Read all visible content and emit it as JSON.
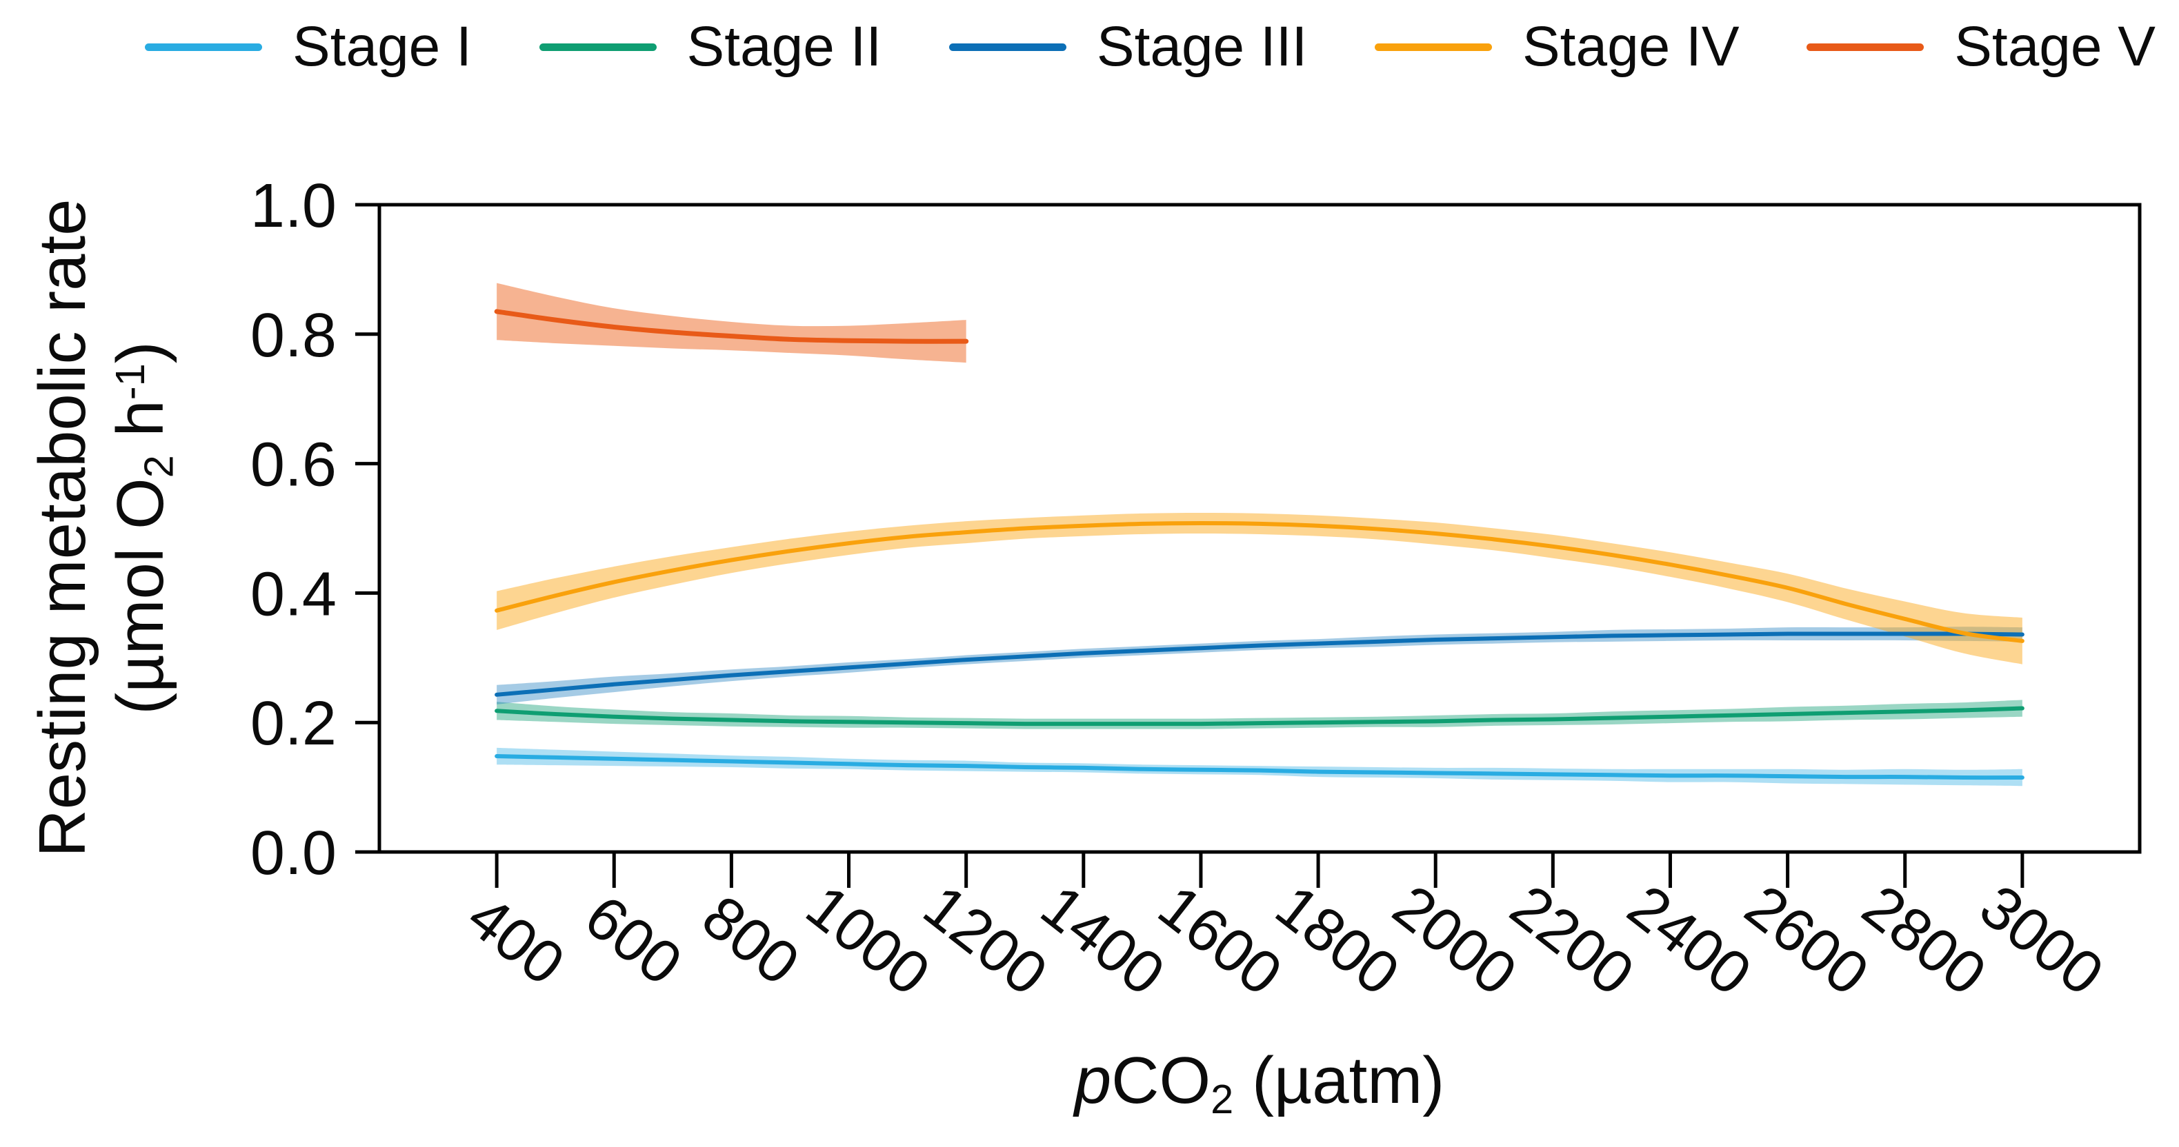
{
  "figure": {
    "ylabel_line1": "Resting metabolic rate",
    "ylabel_unit_pre": "(µmol O",
    "ylabel_unit_sub": "2",
    "ylabel_unit_mid": " h",
    "ylabel_unit_sup": "-1",
    "ylabel_unit_post": ")",
    "xlabel_italic": "p",
    "xlabel_main": "CO",
    "xlabel_sub": "2",
    "xlabel_post": " (µatm)"
  },
  "chart_data": {
    "type": "line",
    "title": "",
    "xlabel": "pCO2 (µatm)",
    "ylabel": "Resting metabolic rate (µmol O2 h-1)",
    "xlim": [
      200,
      3200
    ],
    "ylim": [
      0,
      1
    ],
    "grid": false,
    "legend_position": "top",
    "x_ticks": [
      400,
      600,
      800,
      1000,
      1200,
      1400,
      1600,
      1800,
      2000,
      2200,
      2400,
      2600,
      2800,
      3000
    ],
    "y_ticks": [
      0.0,
      0.2,
      0.4,
      0.6,
      0.8,
      1.0
    ],
    "y_tick_labels": [
      "0.0",
      "0.2",
      "0.4",
      "0.6",
      "0.8",
      "1.0"
    ],
    "axis_color": "#000000",
    "series": [
      {
        "name": "Stage I",
        "color": "#29ACE2",
        "band_color": "rgba(41,172,226,0.38)",
        "x_start": 400,
        "x_step": 100,
        "values": [
          0.148,
          0.146,
          0.144,
          0.142,
          0.14,
          0.138,
          0.136,
          0.134,
          0.133,
          0.131,
          0.13,
          0.128,
          0.127,
          0.126,
          0.124,
          0.123,
          0.122,
          0.121,
          0.12,
          0.119,
          0.118,
          0.118,
          0.117,
          0.116,
          0.116,
          0.115,
          0.115
        ],
        "ci": [
          0.013,
          0.012,
          0.011,
          0.01,
          0.009,
          0.009,
          0.008,
          0.008,
          0.008,
          0.007,
          0.007,
          0.007,
          0.007,
          0.007,
          0.008,
          0.008,
          0.008,
          0.009,
          0.009,
          0.009,
          0.01,
          0.01,
          0.011,
          0.011,
          0.012,
          0.012,
          0.013
        ]
      },
      {
        "name": "Stage II",
        "color": "#0F9E72",
        "band_color": "rgba(15,158,114,0.42)",
        "x_start": 400,
        "x_step": 100,
        "values": [
          0.218,
          0.213,
          0.209,
          0.206,
          0.204,
          0.202,
          0.201,
          0.2,
          0.199,
          0.198,
          0.198,
          0.198,
          0.198,
          0.199,
          0.2,
          0.201,
          0.202,
          0.204,
          0.205,
          0.207,
          0.209,
          0.211,
          0.213,
          0.215,
          0.217,
          0.219,
          0.222
        ],
        "ci": [
          0.014,
          0.012,
          0.011,
          0.01,
          0.01,
          0.009,
          0.009,
          0.008,
          0.008,
          0.008,
          0.008,
          0.008,
          0.008,
          0.008,
          0.008,
          0.008,
          0.009,
          0.009,
          0.009,
          0.01,
          0.01,
          0.01,
          0.011,
          0.011,
          0.012,
          0.012,
          0.013
        ]
      },
      {
        "name": "Stage III",
        "color": "#0C6FB6",
        "band_color": "rgba(30,125,190,0.40)",
        "x_start": 400,
        "x_step": 100,
        "values": [
          0.243,
          0.251,
          0.259,
          0.266,
          0.273,
          0.279,
          0.285,
          0.291,
          0.297,
          0.302,
          0.307,
          0.311,
          0.315,
          0.319,
          0.322,
          0.325,
          0.328,
          0.33,
          0.332,
          0.334,
          0.335,
          0.336,
          0.337,
          0.337,
          0.337,
          0.337,
          0.336
        ],
        "ci": [
          0.015,
          0.013,
          0.012,
          0.01,
          0.009,
          0.008,
          0.008,
          0.007,
          0.007,
          0.007,
          0.007,
          0.007,
          0.007,
          0.007,
          0.007,
          0.008,
          0.008,
          0.008,
          0.008,
          0.009,
          0.009,
          0.009,
          0.01,
          0.01,
          0.01,
          0.011,
          0.011
        ]
      },
      {
        "name": "Stage IV",
        "color": "#F9A10C",
        "band_color": "rgba(250,168,25,0.48)",
        "x_start": 400,
        "x_step": 100,
        "values": [
          0.373,
          0.396,
          0.417,
          0.435,
          0.451,
          0.465,
          0.477,
          0.487,
          0.494,
          0.5,
          0.504,
          0.507,
          0.508,
          0.507,
          0.504,
          0.499,
          0.492,
          0.483,
          0.472,
          0.459,
          0.444,
          0.427,
          0.408,
          0.383,
          0.36,
          0.338,
          0.326
        ],
        "ci": [
          0.03,
          0.027,
          0.024,
          0.022,
          0.02,
          0.019,
          0.018,
          0.017,
          0.017,
          0.016,
          0.016,
          0.016,
          0.016,
          0.016,
          0.016,
          0.016,
          0.017,
          0.017,
          0.018,
          0.018,
          0.019,
          0.02,
          0.022,
          0.024,
          0.027,
          0.031,
          0.036
        ]
      },
      {
        "name": "Stage V",
        "color": "#E85A18",
        "band_color": "rgba(238,110,45,0.52)",
        "x_start": 400,
        "x_step": 100,
        "values": [
          0.835,
          0.822,
          0.811,
          0.803,
          0.797,
          0.792,
          0.79,
          0.789,
          0.789
        ],
        "ci": [
          0.044,
          0.036,
          0.029,
          0.025,
          0.022,
          0.021,
          0.023,
          0.028,
          0.033
        ]
      }
    ]
  }
}
